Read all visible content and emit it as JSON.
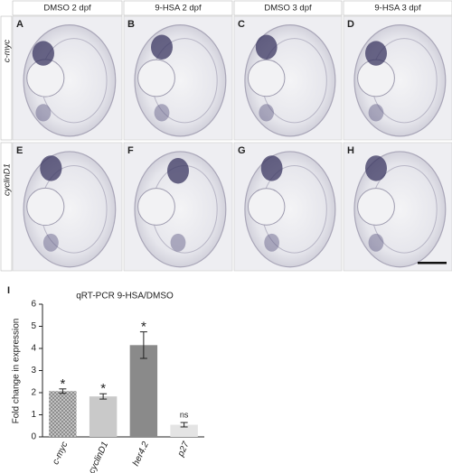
{
  "figure": {
    "column_headers": [
      "DMSO 2 dpf",
      "9-HSA 2 dpf",
      "DMSO 3 dpf",
      "9-HSA 3 dpf"
    ],
    "row_labels": [
      "c-myc",
      "cyclinD1"
    ],
    "panel_letters": [
      "A",
      "B",
      "C",
      "D",
      "E",
      "F",
      "G",
      "H"
    ],
    "chart_panel_letter": "I"
  },
  "chart_data": {
    "type": "bar",
    "title": "qRT-PCR  9-HSA/DMSO",
    "y_label": "Fold change in expression",
    "categories": [
      "c-myc",
      "cyclinD1",
      "her4.2",
      "p27"
    ],
    "values": [
      2.07,
      1.83,
      4.15,
      0.55
    ],
    "errors": [
      0.1,
      0.12,
      0.6,
      0.1
    ],
    "significance": [
      "*",
      "*",
      "*",
      "ns"
    ],
    "colors": [
      "#8e8e8e",
      "#c9c9c9",
      "#8a8a8a",
      "#e4e4e4"
    ],
    "ylim": [
      0,
      6
    ],
    "yticks": [
      0,
      1,
      2,
      3,
      4,
      5,
      6
    ]
  }
}
